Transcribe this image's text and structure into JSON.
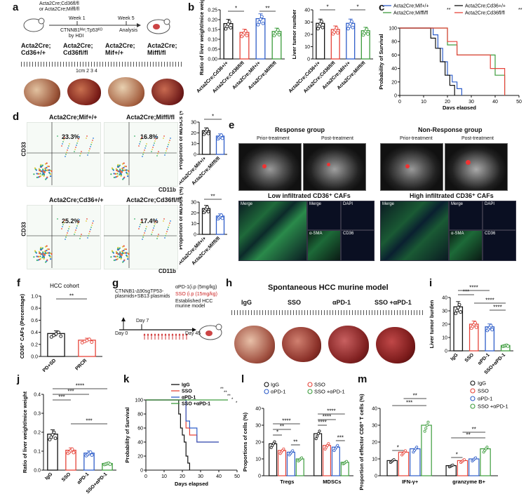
{
  "colors": {
    "black": "#111111",
    "red": "#e6443a",
    "green": "#3d9c3d",
    "blue": "#2f5ec9"
  },
  "panel_letters": {
    "a": "a",
    "b": "b",
    "c": "c",
    "d": "d",
    "e": "e",
    "f": "f",
    "g": "g",
    "h": "h",
    "i": "i",
    "j": "j",
    "k": "k",
    "l": "l",
    "m": "m"
  },
  "a": {
    "mice_label_1": "Acta2Cre;Cd36fl/fl",
    "mice_label_2": "or Acta2Cre;Miffl/fl",
    "week1": "Week 1",
    "week5": "Week 5",
    "injection": "CTNNB1ᴹᵘᵗ;Tp53ᴷᴼ",
    "injection2": "by HDI",
    "analysis": "Analysis",
    "groups": [
      "Acta2Cre;\nCd36+/+",
      "Acta2Cre;\nCd36fl/fl",
      "Acta2Cre;\nMif+/+",
      "Acta2Cre;\nMiffl/fl"
    ],
    "ruler": "1cm  2    3    4"
  },
  "b": {
    "left_ylabel": "Ratio of liver weight/mice weight",
    "right_ylabel": "Liver tumor number",
    "left_ticks": [
      "0.00",
      "0.05",
      "0.10",
      "0.15",
      "0.20",
      "0.25"
    ],
    "right_ticks": [
      "0",
      "10",
      "20",
      "30",
      "40"
    ],
    "categories": [
      "Acta2Cre;Cd36+/+",
      "Acta2Cre;Cd36fl/fl",
      "Acta2Cre;Mif+/+",
      "Acta2Cre;Miffl/fl"
    ],
    "sig": [
      "*",
      "**",
      "*",
      "*"
    ]
  },
  "c": {
    "legend": [
      "Acta2Cre;Mif+/+",
      "Acta2Cre;Miffl/fl",
      "Acta2Cre;Cd36+/+",
      "Acta2Cre;Cd36fl/fl"
    ],
    "sig": [
      "**",
      "**"
    ],
    "ylabel": "Probability of Survival",
    "xlabel": "Days elapsed",
    "yticks": [
      "0",
      "20",
      "40",
      "60",
      "80",
      "100"
    ],
    "xticks": [
      "0",
      "10",
      "20",
      "30",
      "40",
      "50"
    ]
  },
  "d": {
    "top_titles": [
      "Acta2Cre;Mif+/+",
      "Acta2Cre;Miffl/fl"
    ],
    "bottom_titles": [
      "Acta2Cre;Cd36+/+",
      "Acta2Cre;Cd36fl/fl"
    ],
    "top_pct": [
      "23.3%",
      "16.8%"
    ],
    "bottom_pct": [
      "25.2%",
      "17.4%"
    ],
    "cd33": "CD33",
    "cd11b": "CD11b",
    "bar_ylabel": "Proportion of MDSCs (%)",
    "top_bar_cats": [
      "Acta2Cre;Mif+/+",
      "Acta2Cre;Miffl/fl"
    ],
    "bottom_bar_cats": [
      "Acta2Cre;Mif+/+",
      "Acta2Cre;Miffl/fl"
    ],
    "top_sig": "*",
    "bottom_sig": "**",
    "top_ticks": [
      "0",
      "10",
      "20",
      "30"
    ],
    "bottom_ticks": [
      "0",
      "10",
      "20",
      "30"
    ]
  },
  "e": {
    "response": "Response group",
    "nonresponse": "Non-Response group",
    "prior": "Prior-treatment",
    "post": "Post-treatment",
    "low": "Low infiltrated CD36⁺ CAFs",
    "high": "High infiltrated CD36⁺ CAFs",
    "merge": "Merge",
    "dapi": "DAPI",
    "sma": "α-SMA",
    "cd36": "CD36"
  },
  "f": {
    "title": "HCC cohort",
    "ylabel": "CD36⁺ CAFs (Percentage)",
    "categories": [
      "PD+SD",
      "PRCR"
    ],
    "yticks": [
      "0.0",
      "0.2",
      "0.4",
      "0.6",
      "0.8",
      "1.0"
    ],
    "sig": "**"
  },
  "g": {
    "plasmids": "CTNNB1-Δ90sgTP53-\nplasmids+SB13 plasmids",
    "apd1": "αPD-1(i.p (5mg/kg)",
    "sso": "SSO (i.p (15mg/kg)",
    "established": "Established HCC murine model",
    "day0": "Day 0",
    "day7": "Day 7",
    "day45": "Day 45"
  },
  "h": {
    "title": "Spontaneous HCC murine model",
    "groups": [
      "IgG",
      "SSO",
      "αPD-1",
      "SSO +αPD-1"
    ]
  },
  "i": {
    "ylabel": "Liver tumor burden",
    "categories": [
      "IgG",
      "SSO",
      "αPD-1",
      "SSO+αPD-1"
    ],
    "yticks": [
      "0",
      "10",
      "20",
      "30",
      "40"
    ],
    "sig": [
      "***",
      "****",
      "****",
      "****"
    ]
  },
  "j": {
    "ylabel": "Ratio of liver weight/mice weight",
    "categories": [
      "IgG",
      "SSO",
      "αPD-1",
      "SSO+αPD-1"
    ],
    "yticks": [
      "0.0",
      "0.1",
      "0.2",
      "0.3",
      "0.4"
    ],
    "sig": [
      "****",
      "***",
      "***",
      "***"
    ]
  },
  "k": {
    "legend": [
      "IgG",
      "SSO",
      "αPD-1",
      "SSO +αPD-1"
    ],
    "ylabel": "Probability of Survival",
    "xlabel": "Days elapsed",
    "yticks": [
      "0",
      "20",
      "40",
      "60",
      "80",
      "100"
    ],
    "xticks": [
      "0",
      "10",
      "20",
      "30",
      "40",
      "50"
    ],
    "sig": [
      "**",
      "**",
      "**",
      "*",
      "*"
    ]
  },
  "l": {
    "legend": [
      "IgG",
      "SSO",
      "αPD-1",
      "SSO +αPD-1"
    ],
    "ylabel": "Proportions of cells (%)",
    "groups": [
      "Tregs",
      "MDSCs"
    ],
    "yticks": [
      "0",
      "10",
      "20",
      "30",
      "40"
    ],
    "sig": [
      "*",
      "**",
      "****",
      "**",
      "****",
      "****",
      "****",
      "***"
    ]
  },
  "m": {
    "legend": [
      "IgG",
      "SSO",
      "αPD-1",
      "SSO +αPD-1"
    ],
    "ylabel": "Proportion of effector CD8⁺ T cells (%)",
    "groups": [
      "IFN-γ+",
      "granzyme B+"
    ],
    "yticks": [
      "0",
      "10",
      "20",
      "30",
      "40"
    ],
    "sig": [
      "*",
      "***",
      "**",
      "*",
      "**",
      "**"
    ]
  },
  "chart_data": [
    {
      "id": "b-left",
      "type": "bar",
      "categories": [
        "Acta2Cre;Cd36+/+",
        "Acta2Cre;Cd36fl/fl",
        "Acta2Cre;Mif+/+",
        "Acta2Cre;Miffl/fl"
      ],
      "values": [
        0.18,
        0.135,
        0.205,
        0.14
      ],
      "ylim": [
        0,
        0.25
      ],
      "ylabel": "Ratio of liver weight/mice weight"
    },
    {
      "id": "b-right",
      "type": "bar",
      "categories": [
        "Acta2Cre;Cd36+/+",
        "Acta2Cre;Cd36fl/fl",
        "Acta2Cre;Mif+/+",
        "Acta2Cre;Miffl/fl"
      ],
      "values": [
        29,
        24,
        29,
        23
      ],
      "ylim": [
        0,
        40
      ],
      "ylabel": "Liver tumor number"
    },
    {
      "id": "c",
      "type": "line",
      "xlabel": "Days elapsed",
      "ylabel": "Probability of Survival",
      "series": [
        {
          "name": "Acta2Cre;Mif+/+",
          "x": [
            0,
            14,
            16,
            18,
            20,
            22,
            24,
            26
          ],
          "y": [
            100,
            90,
            70,
            50,
            30,
            20,
            10,
            0
          ]
        },
        {
          "name": "Acta2Cre;Miffl/fl",
          "x": [
            0,
            20,
            24,
            28,
            40,
            44
          ],
          "y": [
            100,
            75,
            60,
            60,
            30,
            0
          ]
        },
        {
          "name": "Acta2Cre;Cd36+/+",
          "x": [
            0,
            13,
            15,
            17,
            19,
            21,
            23
          ],
          "y": [
            100,
            85,
            70,
            50,
            30,
            15,
            0
          ]
        },
        {
          "name": "Acta2Cre;Cd36fl/fl",
          "x": [
            0,
            20,
            24,
            28,
            38,
            44
          ],
          "y": [
            100,
            80,
            60,
            60,
            40,
            0
          ]
        }
      ]
    },
    {
      "id": "d-top",
      "type": "bar",
      "categories": [
        "Acta2Cre;Mif+/+",
        "Acta2Cre;Miffl/fl"
      ],
      "values": [
        22,
        17
      ],
      "ylim": [
        0,
        30
      ],
      "ylabel": "Proportion of MDSCs (%)"
    },
    {
      "id": "d-bottom",
      "type": "bar",
      "categories": [
        "Acta2Cre;Mif+/+",
        "Acta2Cre;Miffl/fl"
      ],
      "values": [
        24,
        17
      ],
      "ylim": [
        0,
        30
      ],
      "ylabel": "Proportion of MDSCs (%)"
    },
    {
      "id": "f",
      "type": "bar",
      "categories": [
        "PD+SD",
        "PRCR"
      ],
      "values": [
        0.38,
        0.27
      ],
      "ylim": [
        0,
        1.0
      ],
      "ylabel": "CD36⁺ CAFs (Percentage)"
    },
    {
      "id": "i",
      "type": "bar",
      "categories": [
        "IgG",
        "SSO",
        "αPD-1",
        "SSO+αPD-1"
      ],
      "values": [
        33,
        20,
        18,
        4
      ],
      "ylim": [
        0,
        40
      ],
      "ylabel": "Liver tumor burden"
    },
    {
      "id": "j",
      "type": "bar",
      "categories": [
        "IgG",
        "SSO",
        "αPD-1",
        "SSO+αPD-1"
      ],
      "values": [
        0.19,
        0.105,
        0.09,
        0.035
      ],
      "ylim": [
        0,
        0.4
      ],
      "ylabel": "Ratio of liver weight/mice weight"
    },
    {
      "id": "k",
      "type": "line",
      "xlabel": "Days elapsed",
      "ylabel": "Probability of Survival",
      "series": [
        {
          "name": "IgG",
          "x": [
            0,
            18,
            19,
            20,
            21,
            22,
            23,
            24
          ],
          "y": [
            100,
            80,
            60,
            50,
            40,
            20,
            10,
            0
          ]
        },
        {
          "name": "SSO",
          "x": [
            0,
            22,
            24,
            28,
            40
          ],
          "y": [
            100,
            60,
            50,
            40,
            40
          ]
        },
        {
          "name": "αPD-1",
          "x": [
            0,
            22,
            24,
            28,
            36,
            40
          ],
          "y": [
            100,
            70,
            60,
            40,
            40,
            40
          ]
        },
        {
          "name": "SSO +αPD-1",
          "x": [
            0,
            45
          ],
          "y": [
            100,
            100
          ]
        }
      ]
    },
    {
      "id": "l",
      "type": "bar",
      "categories": [
        "Tregs",
        "MDSCs"
      ],
      "series": [
        {
          "name": "IgG",
          "values": [
            19,
            25
          ]
        },
        {
          "name": "SSO",
          "values": [
            15,
            18
          ]
        },
        {
          "name": "αPD-1",
          "values": [
            14,
            17
          ]
        },
        {
          "name": "SSO +αPD-1",
          "values": [
            10,
            8
          ]
        }
      ],
      "ylim": [
        0,
        40
      ],
      "ylabel": "Proportions of cells (%)"
    },
    {
      "id": "m",
      "type": "bar",
      "categories": [
        "IFN-γ+",
        "granzyme B+"
      ],
      "series": [
        {
          "name": "IgG",
          "values": [
            9,
            6
          ]
        },
        {
          "name": "SSO",
          "values": [
            14,
            9
          ]
        },
        {
          "name": "αPD-1",
          "values": [
            16,
            10
          ]
        },
        {
          "name": "SSO +αPD-1",
          "values": [
            30,
            16
          ]
        }
      ],
      "ylim": [
        0,
        40
      ],
      "ylabel": "Proportion of effector CD8⁺ T cells (%)"
    }
  ]
}
